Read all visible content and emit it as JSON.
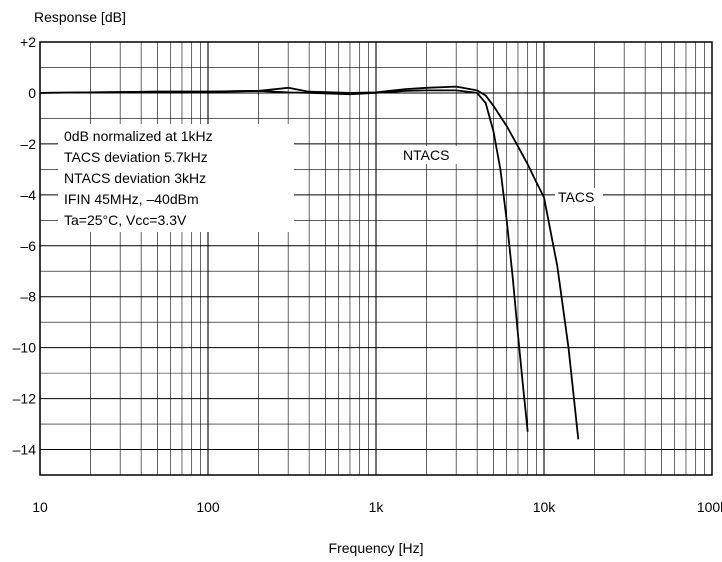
{
  "chart_data": {
    "type": "line",
    "title": "",
    "xlabel": "Frequency [Hz]",
    "ylabel": "Response [dB]",
    "x_scale": "log",
    "xlim": [
      10,
      100000
    ],
    "ylim": [
      -15,
      2
    ],
    "grid": true,
    "x_ticks": [
      {
        "value": 10,
        "label": "10"
      },
      {
        "value": 100,
        "label": "100"
      },
      {
        "value": 1000,
        "label": "1k"
      },
      {
        "value": 10000,
        "label": "10k"
      },
      {
        "value": 100000,
        "label": "100k"
      }
    ],
    "y_ticks": [
      {
        "value": 2,
        "label": "+2"
      },
      {
        "value": 0,
        "label": "0"
      },
      {
        "value": -2,
        "label": "–2"
      },
      {
        "value": -4,
        "label": "–4"
      },
      {
        "value": -6,
        "label": "–6"
      },
      {
        "value": -8,
        "label": "–8"
      },
      {
        "value": -10,
        "label": "–10"
      },
      {
        "value": -12,
        "label": "–12"
      },
      {
        "value": -14,
        "label": "–14"
      }
    ],
    "annotation": [
      "0dB normalized at 1kHz",
      "TACS deviation 5.7kHz",
      "NTACS deviation 3kHz",
      "IFIN 45MHz, –40dBm",
      "Ta=25°C, Vcc=3.3V"
    ],
    "series": [
      {
        "name": "NTACS",
        "x": [
          10,
          50,
          100,
          200,
          300,
          400,
          700,
          1000,
          1500,
          2000,
          3000,
          4000,
          4500,
          5000,
          5500,
          6000,
          6500,
          7000,
          7500,
          8000
        ],
        "y": [
          0.0,
          0.05,
          0.05,
          0.08,
          0.02,
          0.0,
          -0.05,
          0.0,
          0.08,
          0.1,
          0.1,
          0.0,
          -0.4,
          -1.5,
          -3.0,
          -5.0,
          -7.2,
          -9.5,
          -11.5,
          -13.3
        ]
      },
      {
        "name": "TACS",
        "x": [
          10,
          50,
          100,
          200,
          300,
          400,
          700,
          1000,
          1500,
          2000,
          3000,
          4000,
          4500,
          5000,
          6000,
          7000,
          8000,
          9000,
          10000,
          12000,
          14000,
          16000
        ],
        "y": [
          0.0,
          0.05,
          0.05,
          0.08,
          0.2,
          0.05,
          0.0,
          0.02,
          0.15,
          0.2,
          0.25,
          0.1,
          -0.1,
          -0.5,
          -1.3,
          -2.1,
          -2.8,
          -3.5,
          -4.1,
          -6.8,
          -10.0,
          -13.6
        ]
      }
    ]
  }
}
